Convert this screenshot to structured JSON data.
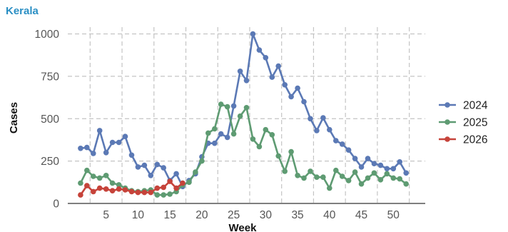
{
  "chart_data": {
    "type": "line",
    "title": "Kerala",
    "xlabel": "Week",
    "ylabel": "Cases",
    "xlim": [
      -1,
      55
    ],
    "ylim": [
      0,
      1040
    ],
    "xticks": [
      5,
      10,
      15,
      20,
      25,
      30,
      35,
      40,
      45,
      50
    ],
    "yticks": [
      0,
      250,
      500,
      750,
      1000
    ],
    "grid": true,
    "legend_position": "right",
    "series": [
      {
        "name": "2024",
        "color": "#5b79b5",
        "x": [
          1,
          2,
          3,
          4,
          5,
          6,
          7,
          8,
          9,
          10,
          11,
          12,
          13,
          14,
          15,
          16,
          17,
          18,
          19,
          20,
          21,
          22,
          23,
          24,
          25,
          26,
          27,
          28,
          29,
          30,
          31,
          32,
          33,
          34,
          35,
          36,
          37,
          38,
          39,
          40,
          41,
          42,
          43,
          44,
          45,
          46,
          47,
          48,
          49,
          50,
          51,
          52
        ],
        "y": [
          325,
          330,
          295,
          430,
          300,
          360,
          360,
          395,
          285,
          215,
          225,
          165,
          230,
          210,
          135,
          175,
          100,
          135,
          175,
          275,
          355,
          355,
          410,
          390,
          575,
          780,
          725,
          1000,
          905,
          860,
          745,
          810,
          700,
          630,
          680,
          600,
          500,
          430,
          505,
          435,
          370,
          350,
          315,
          265,
          215,
          265,
          235,
          225,
          205,
          205,
          245,
          180
        ]
      },
      {
        "name": "2025",
        "color": "#5e9b72",
        "x": [
          1,
          2,
          3,
          4,
          5,
          6,
          7,
          8,
          9,
          10,
          11,
          12,
          13,
          14,
          15,
          16,
          17,
          18,
          19,
          20,
          21,
          22,
          23,
          24,
          25,
          26,
          27,
          28,
          29,
          30,
          31,
          32,
          33,
          34,
          35,
          36,
          37,
          38,
          39,
          40,
          41,
          42,
          43,
          44,
          45,
          46,
          47,
          48,
          49,
          50,
          51,
          52
        ],
        "y": [
          120,
          195,
          160,
          150,
          165,
          120,
          110,
          90,
          75,
          70,
          75,
          80,
          50,
          50,
          55,
          70,
          110,
          125,
          185,
          250,
          415,
          440,
          585,
          570,
          410,
          515,
          565,
          380,
          335,
          435,
          405,
          280,
          190,
          305,
          165,
          150,
          190,
          155,
          155,
          90,
          195,
          160,
          135,
          185,
          115,
          150,
          180,
          140,
          175,
          150,
          145,
          115
        ]
      },
      {
        "name": "2026",
        "color": "#c6433a",
        "x": [
          1,
          2,
          3,
          4,
          5,
          6,
          7,
          8,
          9,
          10,
          11,
          12,
          13,
          14,
          15,
          16,
          17
        ],
        "y": [
          50,
          105,
          70,
          90,
          85,
          75,
          85,
          80,
          70,
          65,
          65,
          65,
          90,
          95,
          130,
          90,
          120
        ]
      }
    ]
  }
}
